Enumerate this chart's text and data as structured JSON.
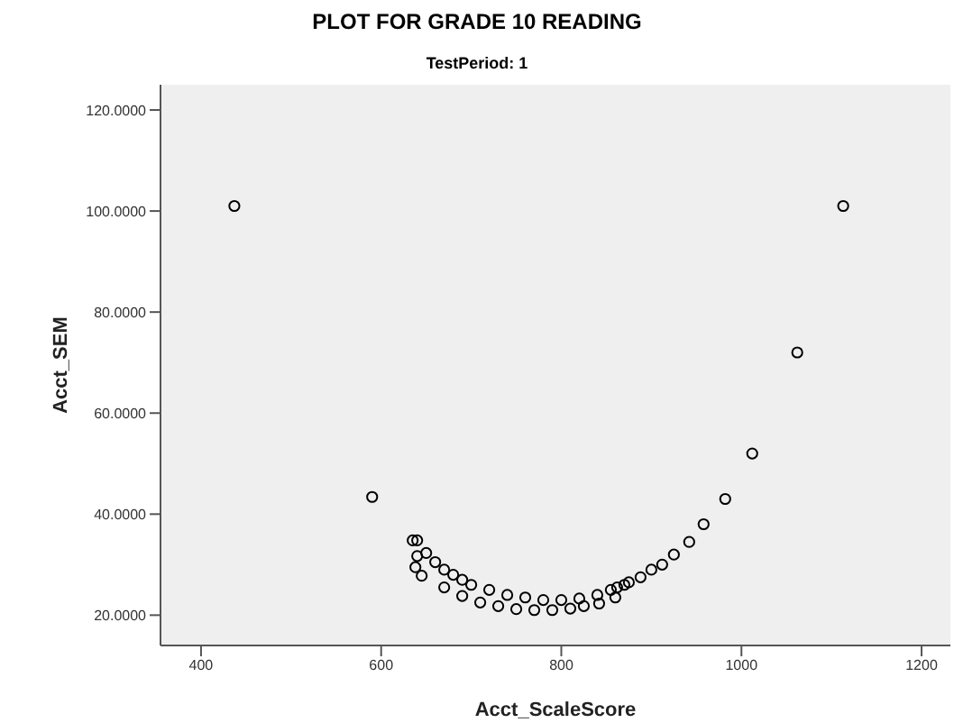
{
  "chart_data": {
    "type": "scatter",
    "title": "PLOT FOR GRADE 10 READING",
    "subtitle": "TestPeriod: 1",
    "xlabel": "Acct_ScaleScore",
    "ylabel": "Acct_SEM",
    "xlim": [
      355,
      1232
    ],
    "xticks": [
      400,
      600,
      800,
      1000,
      1200
    ],
    "ylim": [
      14,
      125
    ],
    "yticks": [
      {
        "value": 20,
        "label": "20.0000"
      },
      {
        "value": 40,
        "label": "40.0000"
      },
      {
        "value": 60,
        "label": "60.0000"
      },
      {
        "value": 80,
        "label": "80.0000"
      },
      {
        "value": 100,
        "label": "100.0000"
      },
      {
        "value": 120,
        "label": "120.0000"
      }
    ],
    "grid": false,
    "legend": false,
    "marker": "circle",
    "series": [
      {
        "color": "#000000",
        "x": [
          437,
          1113,
          590,
          1062,
          1012,
          982,
          958,
          942,
          925,
          912,
          900,
          888,
          875,
          862,
          635,
          640,
          650,
          660,
          670,
          680,
          690,
          700,
          720,
          740,
          760,
          780,
          800,
          820,
          840,
          855,
          870,
          638,
          645,
          640,
          670,
          690,
          710,
          730,
          750,
          770,
          790,
          810,
          825,
          842,
          860
        ],
        "values": [
          101,
          101,
          43.4,
          72,
          52,
          43,
          38,
          34.5,
          32,
          30,
          29,
          27.5,
          26.5,
          25.5,
          34.8,
          34.8,
          32.3,
          30.5,
          29,
          28,
          27,
          26,
          25,
          24,
          23.5,
          23,
          23,
          23.3,
          24,
          25,
          26,
          29.5,
          27.8,
          31.7,
          25.5,
          23.8,
          22.5,
          21.8,
          21.2,
          21,
          21,
          21.3,
          21.8,
          22.3,
          23.5
        ]
      }
    ]
  }
}
